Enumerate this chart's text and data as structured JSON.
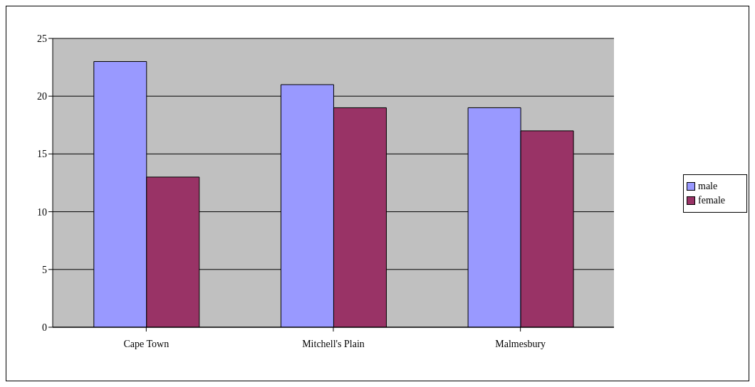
{
  "chart_data": {
    "type": "bar",
    "categories": [
      "Cape Town",
      "Mitchell's Plain",
      "Malmesbury"
    ],
    "series": [
      {
        "name": "male",
        "color": "#9999ff",
        "values": [
          23,
          21,
          19
        ]
      },
      {
        "name": "female",
        "color": "#993366",
        "values": [
          13,
          19,
          17
        ]
      }
    ],
    "ylim": [
      0,
      25
    ],
    "yticks": [
      0,
      5,
      10,
      15,
      20,
      25
    ],
    "grid": "y",
    "legend": "right"
  }
}
